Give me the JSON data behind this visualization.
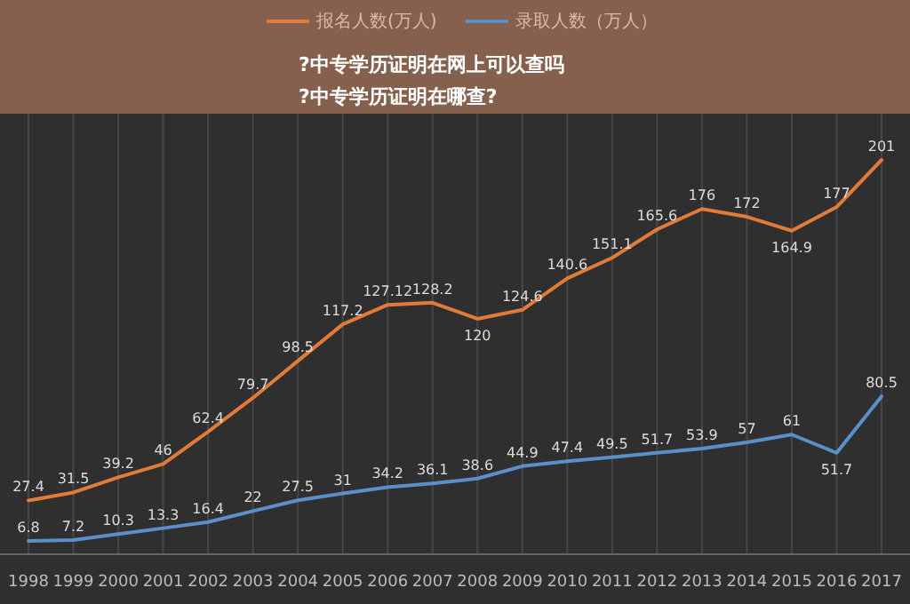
{
  "chart_data": {
    "type": "line",
    "title": "?中专学历证明在网上可以查吗",
    "subtitle": "?中专学历证明在哪查?",
    "categories": [
      "1998",
      "1999",
      "2000",
      "2001",
      "2002",
      "2003",
      "2004",
      "2005",
      "2006",
      "2007",
      "2008",
      "2009",
      "2010",
      "2011",
      "2012",
      "2013",
      "2014",
      "2015",
      "2016",
      "2017"
    ],
    "series": [
      {
        "name": "报名人数(万人)",
        "color": "#e07b39",
        "values": [
          27.4,
          31.5,
          39.2,
          46,
          62.4,
          79.7,
          98.5,
          117.2,
          127.12,
          128.2,
          120,
          124.6,
          140.6,
          151.1,
          165.6,
          176,
          172,
          164.9,
          177,
          201
        ]
      },
      {
        "name": "录取人数（万人）",
        "color": "#5b8fc9",
        "values": [
          6.8,
          7.2,
          10.3,
          13.3,
          16.4,
          22,
          27.5,
          31,
          34.2,
          36.1,
          38.6,
          44.9,
          47.4,
          49.5,
          51.7,
          53.9,
          57,
          61,
          51.7,
          80.5
        ]
      }
    ],
    "data_labels": true,
    "grid": "x",
    "legend": "top"
  }
}
